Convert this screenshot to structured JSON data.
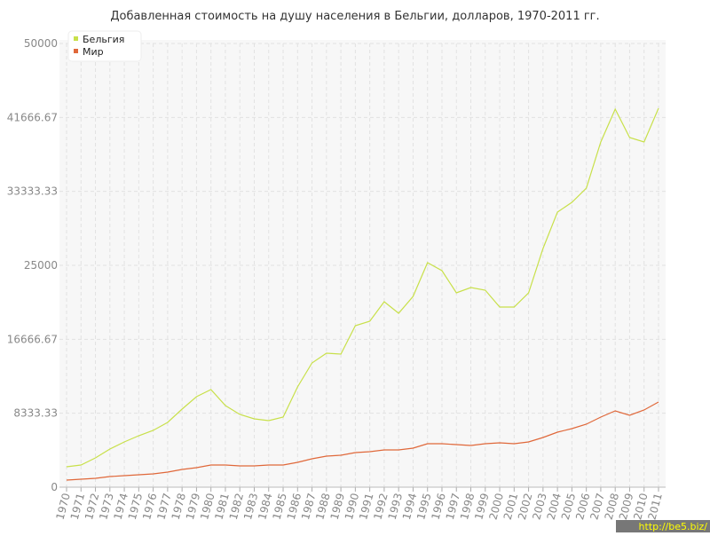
{
  "chart_data": {
    "type": "line",
    "title": "Добавленная стоимость на душу населения в Бельгии, долларов, 1970-2011 гг.",
    "categories": [
      "1970",
      "1971",
      "1972",
      "1973",
      "1974",
      "1975",
      "1976",
      "1977",
      "1978",
      "1979",
      "1980",
      "1981",
      "1982",
      "1983",
      "1984",
      "1985",
      "1986",
      "1987",
      "1988",
      "1989",
      "1990",
      "1991",
      "1992",
      "1993",
      "1994",
      "1995",
      "1996",
      "1997",
      "1998",
      "1999",
      "2000",
      "2001",
      "2002",
      "2003",
      "2004",
      "2005",
      "2006",
      "2007",
      "2008",
      "2009",
      "2010",
      "2011"
    ],
    "series": [
      {
        "name": "Бельгия",
        "color": "#c8e04a",
        "values": [
          2300,
          2500,
          3300,
          4300,
          5100,
          5800,
          6400,
          7300,
          8800,
          10200,
          11000,
          9200,
          8200,
          7700,
          7500,
          7900,
          11300,
          14000,
          15100,
          15000,
          18200,
          18700,
          20900,
          19600,
          21500,
          25300,
          24400,
          21900,
          22500,
          22200,
          20300,
          20300,
          21900,
          26900,
          31000,
          32100,
          33700,
          38900,
          42600,
          39400,
          38900,
          42700
        ]
      },
      {
        "name": "Мир",
        "color": "#e0683a",
        "values": [
          800,
          900,
          1000,
          1200,
          1300,
          1400,
          1500,
          1700,
          2000,
          2200,
          2500,
          2500,
          2400,
          2400,
          2500,
          2500,
          2800,
          3200,
          3500,
          3600,
          3900,
          4000,
          4200,
          4200,
          4400,
          4900,
          4900,
          4800,
          4700,
          4900,
          5000,
          4900,
          5100,
          5600,
          6200,
          6600,
          7100,
          7900,
          8600,
          8100,
          8700,
          9600
        ]
      }
    ],
    "ylim": [
      0,
      50000
    ],
    "yticks": [
      0,
      8333.33,
      16666.67,
      25000,
      33333.33,
      41666.67,
      50000
    ],
    "grid": true,
    "legend": "top-left",
    "watermark": "http://be5.biz/"
  }
}
